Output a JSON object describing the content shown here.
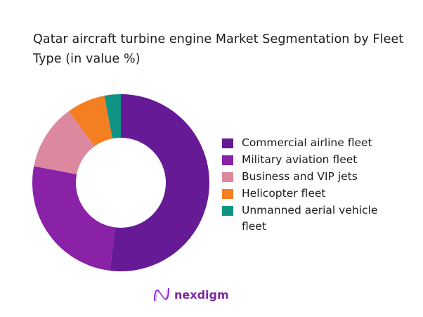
{
  "title": "Qatar aircraft turbine engine Market Segmentation by Fleet Type (in value %)",
  "legend": [
    {
      "label": "Commercial airline fleet",
      "color": "#661a96"
    },
    {
      "label": "Military aviation fleet",
      "color": "#8a22a8"
    },
    {
      "label": "Business and VIP jets",
      "color": "#dc889e"
    },
    {
      "label": "Helicopter fleet",
      "color": "#f47f22"
    },
    {
      "label": "Unmanned aerial vehicle fleet",
      "color": "#0f9484"
    }
  ],
  "logo": {
    "text": "nexdigm"
  },
  "chart_data": {
    "type": "pie",
    "variant": "donut",
    "title": "Qatar aircraft turbine engine Market Segmentation by Fleet Type (in value %)",
    "categories": [
      "Commercial airline fleet",
      "Military aviation fleet",
      "Business and VIP jets",
      "Helicopter fleet",
      "Unmanned aerial vehicle fleet"
    ],
    "values": [
      52,
      26,
      12,
      7,
      3
    ],
    "colors": [
      "#661a96",
      "#8a22a8",
      "#dc889e",
      "#f47f22",
      "#0f9484"
    ],
    "legend_position": "right",
    "start_angle": "top, clockwise"
  }
}
